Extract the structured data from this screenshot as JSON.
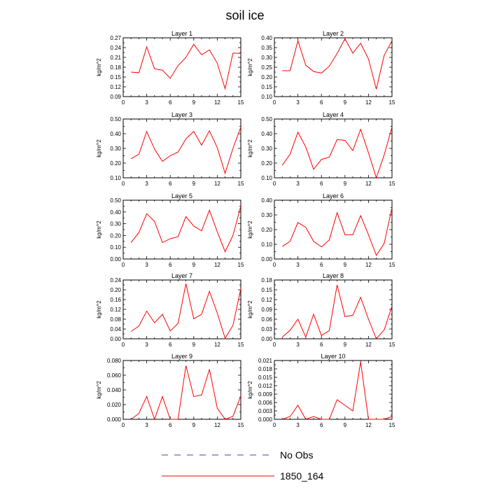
{
  "figure": {
    "title": "soil ice",
    "legend": [
      {
        "label": "No Obs",
        "style": "dashed",
        "color": "#4a4a8a"
      },
      {
        "label": "1850_164",
        "style": "solid",
        "color": "#ff0000"
      }
    ]
  },
  "chart_data": [
    {
      "type": "line",
      "title": "Layer 1",
      "xlabel": "",
      "ylabel": "kg/m^2",
      "xlim": [
        0,
        15
      ],
      "xticks": [
        "0",
        "3",
        "6",
        "9",
        "12",
        "15"
      ],
      "ylim": [
        0.09,
        0.27
      ],
      "yticks": [
        "0.09",
        "0.12",
        "0.15",
        "0.18",
        "0.21",
        "0.24",
        "0.27"
      ],
      "series": [
        {
          "name": "1850_164",
          "color": "#ff0000",
          "x": [
            1,
            2,
            3,
            4,
            5,
            6,
            7,
            8,
            9,
            10,
            11,
            12,
            13,
            14,
            15
          ],
          "y": [
            0.165,
            0.163,
            0.242,
            0.175,
            0.171,
            0.146,
            0.185,
            0.21,
            0.25,
            0.218,
            0.233,
            0.192,
            0.114,
            0.223,
            0.222
          ]
        }
      ]
    },
    {
      "type": "line",
      "title": "Layer 2",
      "xlabel": "",
      "ylabel": "kg/m^2",
      "xlim": [
        0,
        15
      ],
      "xticks": [
        "0",
        "3",
        "6",
        "9",
        "12",
        "15"
      ],
      "ylim": [
        0.1,
        0.4
      ],
      "yticks": [
        "0.10",
        "0.15",
        "0.20",
        "0.25",
        "0.30",
        "0.35",
        "0.40"
      ],
      "series": [
        {
          "name": "1850_164",
          "color": "#ff0000",
          "x": [
            1,
            2,
            3,
            4,
            5,
            6,
            7,
            8,
            9,
            10,
            11,
            12,
            13,
            14,
            15
          ],
          "y": [
            0.232,
            0.232,
            0.385,
            0.26,
            0.228,
            0.22,
            0.255,
            0.32,
            0.395,
            0.322,
            0.372,
            0.292,
            0.138,
            0.31,
            0.385
          ]
        }
      ]
    },
    {
      "type": "line",
      "title": "Layer 3",
      "xlabel": "",
      "ylabel": "kg/m^2",
      "xlim": [
        0,
        15
      ],
      "xticks": [
        "0",
        "3",
        "6",
        "9",
        "12",
        "15"
      ],
      "ylim": [
        0.1,
        0.5
      ],
      "yticks": [
        "0.10",
        "0.20",
        "0.30",
        "0.40",
        "0.50"
      ],
      "series": [
        {
          "name": "1850_164",
          "color": "#ff0000",
          "x": [
            1,
            2,
            3,
            4,
            5,
            6,
            7,
            8,
            9,
            10,
            11,
            12,
            13,
            14,
            15
          ],
          "y": [
            0.23,
            0.26,
            0.415,
            0.295,
            0.212,
            0.25,
            0.275,
            0.365,
            0.415,
            0.322,
            0.42,
            0.305,
            0.13,
            0.3,
            0.445
          ]
        }
      ]
    },
    {
      "type": "line",
      "title": "Layer 4",
      "xlabel": "",
      "ylabel": "kg/m^2",
      "xlim": [
        0,
        15
      ],
      "xticks": [
        "0",
        "3",
        "6",
        "9",
        "12",
        "15"
      ],
      "ylim": [
        0.1,
        0.5
      ],
      "yticks": [
        "0.10",
        "0.20",
        "0.30",
        "0.40",
        "0.50"
      ],
      "series": [
        {
          "name": "1850_164",
          "color": "#ff0000",
          "x": [
            1,
            2,
            3,
            4,
            5,
            6,
            7,
            8,
            9,
            10,
            11,
            12,
            13,
            14,
            15
          ],
          "y": [
            0.185,
            0.26,
            0.41,
            0.31,
            0.158,
            0.225,
            0.24,
            0.36,
            0.355,
            0.285,
            0.43,
            0.27,
            0.1,
            0.255,
            0.445
          ]
        }
      ]
    },
    {
      "type": "line",
      "title": "Layer 5",
      "xlabel": "",
      "ylabel": "kg/m^2",
      "xlim": [
        0,
        15
      ],
      "xticks": [
        "0",
        "3",
        "6",
        "9",
        "12",
        "15"
      ],
      "ylim": [
        0.0,
        0.5
      ],
      "yticks": [
        "0.00",
        "0.10",
        "0.20",
        "0.30",
        "0.40",
        "0.50"
      ],
      "series": [
        {
          "name": "1850_164",
          "color": "#ff0000",
          "x": [
            1,
            2,
            3,
            4,
            5,
            6,
            7,
            8,
            9,
            10,
            11,
            12,
            13,
            14,
            15
          ],
          "y": [
            0.14,
            0.225,
            0.385,
            0.32,
            0.14,
            0.172,
            0.19,
            0.36,
            0.28,
            0.24,
            0.415,
            0.232,
            0.062,
            0.2,
            0.45
          ]
        }
      ]
    },
    {
      "type": "line",
      "title": "Layer 6",
      "xlabel": "",
      "ylabel": "kg/m^2",
      "xlim": [
        0,
        15
      ],
      "xticks": [
        "0",
        "3",
        "6",
        "9",
        "12",
        "15"
      ],
      "ylim": [
        0.0,
        0.4
      ],
      "yticks": [
        "0.00",
        "0.10",
        "0.20",
        "0.30",
        "0.40"
      ],
      "series": [
        {
          "name": "1850_164",
          "color": "#ff0000",
          "x": [
            1,
            2,
            3,
            4,
            5,
            6,
            7,
            8,
            9,
            10,
            11,
            12,
            13,
            14,
            15
          ],
          "y": [
            0.085,
            0.12,
            0.248,
            0.215,
            0.12,
            0.082,
            0.13,
            0.315,
            0.165,
            0.165,
            0.295,
            0.165,
            0.025,
            0.105,
            0.35
          ]
        }
      ]
    },
    {
      "type": "line",
      "title": "Layer 7",
      "xlabel": "",
      "ylabel": "kg/m^2",
      "xlim": [
        0,
        15
      ],
      "xticks": [
        "0",
        "3",
        "6",
        "9",
        "12",
        "15"
      ],
      "ylim": [
        0.0,
        0.24
      ],
      "yticks": [
        "0.00",
        "0.04",
        "0.08",
        "0.12",
        "0.16",
        "0.20",
        "0.24"
      ],
      "series": [
        {
          "name": "1850_164",
          "color": "#ff0000",
          "x": [
            1,
            2,
            3,
            4,
            5,
            6,
            7,
            8,
            9,
            10,
            11,
            12,
            13,
            14,
            15
          ],
          "y": [
            0.03,
            0.052,
            0.113,
            0.065,
            0.1,
            0.032,
            0.063,
            0.225,
            0.082,
            0.1,
            0.194,
            0.105,
            0.002,
            0.055,
            0.205
          ]
        }
      ]
    },
    {
      "type": "line",
      "title": "Layer 8",
      "xlabel": "",
      "ylabel": "kg/m^2",
      "xlim": [
        0,
        15
      ],
      "xticks": [
        "0",
        "3",
        "6",
        "9",
        "12",
        "15"
      ],
      "ylim": [
        0.0,
        0.18
      ],
      "yticks": [
        "0.00",
        "0.03",
        "0.06",
        "0.09",
        "0.12",
        "0.15",
        "0.18"
      ],
      "series": [
        {
          "name": "1850_164",
          "color": "#ff0000",
          "x": [
            1,
            2,
            3,
            4,
            5,
            6,
            7,
            8,
            9,
            10,
            11,
            12,
            13,
            14,
            15
          ],
          "y": [
            0.005,
            0.026,
            0.06,
            0.005,
            0.075,
            0.01,
            0.025,
            0.165,
            0.068,
            0.072,
            0.127,
            0.06,
            0.0,
            0.027,
            0.1
          ]
        }
      ]
    },
    {
      "type": "line",
      "title": "Layer 9",
      "xlabel": "",
      "ylabel": "kg/m^2",
      "xlim": [
        0,
        15
      ],
      "xticks": [
        "0",
        "3",
        "6",
        "9",
        "12",
        "15"
      ],
      "ylim": [
        0.0,
        0.08
      ],
      "yticks": [
        "0.000",
        "0.020",
        "0.040",
        "0.060",
        "0.080"
      ],
      "series": [
        {
          "name": "1850_164",
          "color": "#ff0000",
          "x": [
            1,
            2,
            3,
            4,
            5,
            6,
            7,
            8,
            9,
            10,
            11,
            12,
            13,
            14,
            15
          ],
          "y": [
            0.0,
            0.008,
            0.031,
            0.0,
            0.031,
            0.0,
            0.0,
            0.073,
            0.031,
            0.033,
            0.068,
            0.015,
            0.0,
            0.004,
            0.032
          ]
        }
      ]
    },
    {
      "type": "line",
      "title": "Layer 10",
      "xlabel": "",
      "ylabel": "kg/m^2",
      "xlim": [
        0,
        15
      ],
      "xticks": [
        "0",
        "3",
        "6",
        "9",
        "12",
        "15"
      ],
      "ylim": [
        0.0,
        0.021
      ],
      "yticks": [
        "0.000",
        "0.003",
        "0.006",
        "0.009",
        "0.012",
        "0.015",
        "0.018",
        "0.021"
      ],
      "series": [
        {
          "name": "1850_164",
          "color": "#ff0000",
          "x": [
            1,
            2,
            3,
            4,
            5,
            6,
            7,
            8,
            9,
            10,
            11,
            12,
            13,
            14,
            15
          ],
          "y": [
            0.0,
            0.001,
            0.005,
            0.0,
            0.001,
            0.0,
            0.0,
            0.007,
            0.005,
            0.003,
            0.0205,
            0.0,
            0.0,
            0.0,
            0.001
          ]
        }
      ]
    }
  ]
}
